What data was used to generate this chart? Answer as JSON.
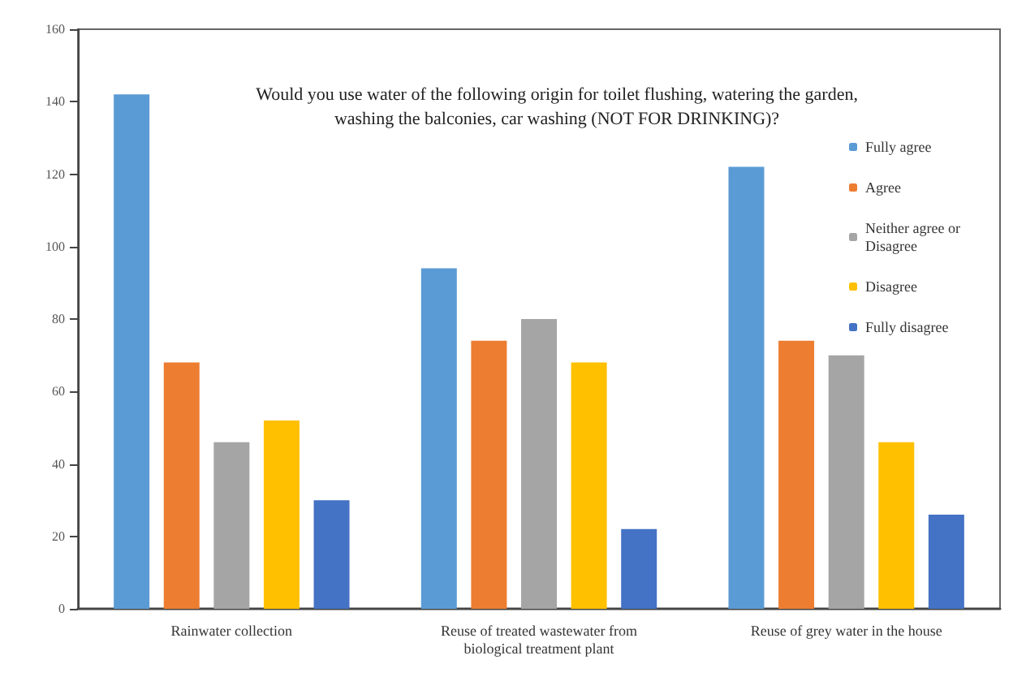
{
  "chart_data": {
    "type": "bar",
    "title": "Would you use water of the following origin for toilet flushing, watering the garden,\nwashing the balconies, car washing (NOT FOR DRINKING)?",
    "categories": [
      "Rainwater collection",
      "Reuse of treated wastewater from\nbiological treatment plant",
      "Reuse of grey water in the house"
    ],
    "series": [
      {
        "name": "Fully agree",
        "color": "#5b9bd5",
        "values": [
          142,
          94,
          122
        ]
      },
      {
        "name": "Agree",
        "color": "#ed7d31",
        "values": [
          68,
          74,
          74
        ]
      },
      {
        "name": "Neither agree or Disagree",
        "color": "#a5a5a5",
        "values": [
          46,
          80,
          70
        ]
      },
      {
        "name": "Disagree",
        "color": "#ffc000",
        "values": [
          52,
          68,
          46
        ]
      },
      {
        "name": "Fully disagree",
        "color": "#4472c4",
        "values": [
          30,
          22,
          26
        ]
      }
    ],
    "ylim": [
      0,
      160
    ],
    "yticks": [
      0,
      20,
      40,
      60,
      80,
      100,
      120,
      140,
      160
    ],
    "grid": false,
    "legend": "right"
  }
}
